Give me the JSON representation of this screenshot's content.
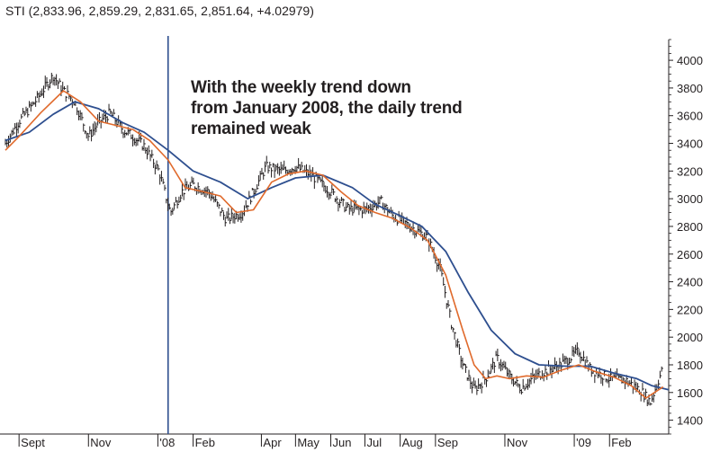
{
  "header": {
    "title": "STI (2,833.96, 2,859.29, 2,831.65, 2,851.64, +4.02979)"
  },
  "annotation": {
    "lines": [
      "With the weekly trend down",
      "from January 2008, the daily trend",
      "remained weak"
    ]
  },
  "chart_data": {
    "type": "line",
    "title": "STI (2,833.96, 2,859.29, 2,831.65, 2,851.64, +4.02979)",
    "xlabel": "",
    "ylabel": "",
    "ylim": [
      1300,
      4150
    ],
    "y_ticks": [
      1400,
      1600,
      1800,
      2000,
      2200,
      2400,
      2600,
      2800,
      3000,
      3200,
      3400,
      3600,
      3800,
      4000
    ],
    "x_ticks": [
      "Sept",
      "Nov",
      "'08",
      "Feb",
      "Apr",
      "May",
      "Jun",
      "Jul",
      "Aug",
      "Sep",
      "Nov",
      "'09",
      "Feb"
    ],
    "x_tick_dates": [
      "2007-09-01",
      "2007-11-01",
      "2008-01-01",
      "2008-02-01",
      "2008-04-01",
      "2008-05-01",
      "2008-06-01",
      "2008-07-01",
      "2008-08-01",
      "2008-09-01",
      "2008-11-01",
      "2009-01-01",
      "2009-02-01"
    ],
    "xlim": [
      "2007-08-20",
      "2009-03-25"
    ],
    "vertical_marker": "2008-01-10",
    "grid": false,
    "colors": {
      "price": "#231f20",
      "fast_ma": "#e06a2c",
      "slow_ma": "#2e4f8f",
      "marker": "#2e4f8f"
    },
    "series": [
      {
        "style": "daily-bars",
        "x": [
          "2007-08-20",
          "2007-09-01",
          "2007-09-15",
          "2007-10-01",
          "2007-10-10",
          "2007-10-20",
          "2007-11-01",
          "2007-11-10",
          "2007-11-20",
          "2007-12-01",
          "2007-12-10",
          "2007-12-20",
          "2008-01-02",
          "2008-01-12",
          "2008-01-22",
          "2008-02-01",
          "2008-02-15",
          "2008-03-01",
          "2008-03-15",
          "2008-03-25",
          "2008-04-05",
          "2008-04-20",
          "2008-05-01",
          "2008-05-15",
          "2008-06-01",
          "2008-06-15",
          "2008-07-01",
          "2008-07-15",
          "2008-07-25",
          "2008-08-10",
          "2008-08-25",
          "2008-09-05",
          "2008-09-15",
          "2008-09-25",
          "2008-10-05",
          "2008-10-15",
          "2008-10-25",
          "2008-11-05",
          "2008-11-15",
          "2008-11-25",
          "2008-12-05",
          "2008-12-20",
          "2009-01-05",
          "2009-01-15",
          "2009-02-01",
          "2009-02-15",
          "2009-03-01",
          "2009-03-09",
          "2009-03-20"
        ],
        "values": [
          3400,
          3560,
          3700,
          3890,
          3780,
          3700,
          3450,
          3550,
          3620,
          3500,
          3450,
          3380,
          3200,
          2900,
          3050,
          3100,
          3050,
          2850,
          2900,
          3050,
          3230,
          3200,
          3230,
          3170,
          3050,
          2930,
          2920,
          2980,
          2880,
          2800,
          2720,
          2500,
          2100,
          1800,
          1620,
          1700,
          1850,
          1720,
          1630,
          1700,
          1750,
          1800,
          1900,
          1770,
          1700,
          1690,
          1610,
          1530,
          1780
        ]
      },
      {
        "style": "fast-ma",
        "x": [
          "2007-08-20",
          "2007-09-01",
          "2007-09-20",
          "2007-10-10",
          "2007-10-25",
          "2007-11-10",
          "2007-11-25",
          "2007-12-10",
          "2007-12-25",
          "2008-01-10",
          "2008-01-25",
          "2008-02-10",
          "2008-02-25",
          "2008-03-10",
          "2008-03-25",
          "2008-04-10",
          "2008-04-25",
          "2008-05-10",
          "2008-05-25",
          "2008-06-10",
          "2008-06-25",
          "2008-07-10",
          "2008-07-25",
          "2008-08-10",
          "2008-08-25",
          "2008-09-10",
          "2008-09-25",
          "2008-10-05",
          "2008-10-15",
          "2008-10-25",
          "2008-11-05",
          "2008-11-20",
          "2008-12-05",
          "2008-12-20",
          "2009-01-05",
          "2009-01-20",
          "2009-02-05",
          "2009-02-20",
          "2009-03-05",
          "2009-03-20"
        ],
        "values": [
          3350,
          3450,
          3620,
          3780,
          3700,
          3560,
          3530,
          3500,
          3420,
          3280,
          3080,
          3050,
          3020,
          2900,
          2920,
          3120,
          3180,
          3200,
          3170,
          3050,
          2950,
          2900,
          2860,
          2790,
          2700,
          2450,
          2050,
          1800,
          1700,
          1720,
          1700,
          1720,
          1710,
          1760,
          1800,
          1750,
          1710,
          1650,
          1560,
          1640
        ]
      },
      {
        "style": "slow-ma",
        "x": [
          "2007-08-20",
          "2007-09-10",
          "2007-10-01",
          "2007-10-20",
          "2007-11-10",
          "2007-12-01",
          "2007-12-20",
          "2008-01-10",
          "2008-02-01",
          "2008-02-25",
          "2008-03-20",
          "2008-04-10",
          "2008-05-01",
          "2008-05-25",
          "2008-06-20",
          "2008-07-10",
          "2008-07-31",
          "2008-08-20",
          "2008-09-10",
          "2008-09-30",
          "2008-10-20",
          "2008-11-10",
          "2008-12-01",
          "2008-12-25",
          "2009-01-15",
          "2009-02-05",
          "2009-02-25",
          "2009-03-10",
          "2009-03-25"
        ],
        "values": [
          3420,
          3480,
          3610,
          3700,
          3650,
          3550,
          3480,
          3350,
          3200,
          3120,
          3000,
          3080,
          3150,
          3170,
          3080,
          2960,
          2880,
          2800,
          2620,
          2320,
          2050,
          1880,
          1800,
          1790,
          1790,
          1740,
          1700,
          1650,
          1620
        ]
      }
    ]
  }
}
